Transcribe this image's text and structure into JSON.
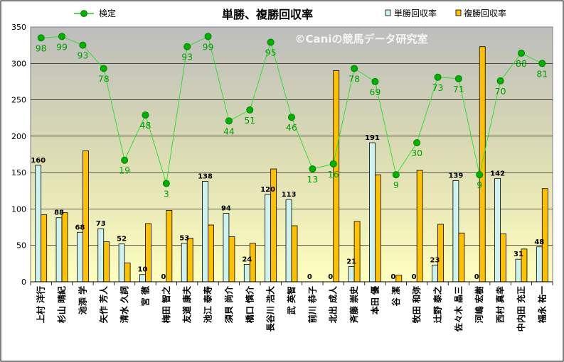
{
  "chart_data": {
    "type": "bar",
    "title": "単勝、複勝回収率",
    "watermark": "©Caniの競馬データ研究室",
    "xlabel": "",
    "ylabel": "",
    "ylim": [
      0,
      350
    ],
    "yticks": [
      0,
      50,
      100,
      150,
      200,
      250,
      300,
      350
    ],
    "grid": true,
    "legend": "top",
    "categories": [
      "上村 洋行",
      "杉山 晴紀",
      "池添 学",
      "矢作 芳人",
      "清水 久詞",
      "宮 徹",
      "梅田 智之",
      "友道 康夫",
      "池江 泰寿",
      "須貝 尚介",
      "橋口 慎介",
      "長谷川 浩大",
      "武 英智",
      "前川 恭子",
      "北出 成人",
      "斉藤 崇史",
      "本田 優",
      "谷 潔",
      "牧田 和弥",
      "辻野 泰之",
      "佐々木 晶三",
      "河嶋 宏樹",
      "西村 真幸",
      "中内田 充正",
      "福永 祐一"
    ],
    "series": [
      {
        "name": "単勝回収率",
        "kind": "bar",
        "color": "#ccf2f2",
        "values": [
          160,
          88,
          68,
          73,
          52,
          10,
          0,
          53,
          138,
          94,
          24,
          120,
          113,
          0,
          0,
          21,
          191,
          0,
          0,
          23,
          139,
          0,
          142,
          31,
          48
        ],
        "labels": [
          "160",
          "88",
          "68",
          "73",
          "52",
          "10",
          "0",
          "53",
          "138",
          "94",
          "24",
          "120",
          "113",
          "0",
          "0",
          "21",
          "191",
          "0",
          "0",
          "23",
          "139",
          "0",
          "142",
          "31",
          "48"
        ]
      },
      {
        "name": "複勝回収率",
        "kind": "bar",
        "color": "#ffc000",
        "values": [
          92,
          95,
          180,
          55,
          26,
          80,
          98,
          60,
          78,
          62,
          53,
          155,
          77,
          0,
          290,
          83,
          147,
          9,
          153,
          79,
          67,
          323,
          66,
          45,
          128
        ]
      },
      {
        "name": "検定",
        "kind": "line",
        "color": "#00b000",
        "values": [
          335,
          337,
          325,
          293,
          167,
          229,
          135,
          323,
          337,
          221,
          236,
          329,
          226,
          155,
          162,
          293,
          275,
          147,
          191,
          281,
          279,
          147,
          276,
          314,
          300
        ],
        "labels": [
          "98",
          "99",
          "93",
          "78",
          "19",
          "48",
          "3",
          "93",
          "99",
          "44",
          "51",
          "95",
          "46",
          "13",
          "16",
          "78",
          "69",
          "9",
          "30",
          "73",
          "71",
          "9",
          "70",
          "88",
          "81"
        ]
      }
    ]
  }
}
